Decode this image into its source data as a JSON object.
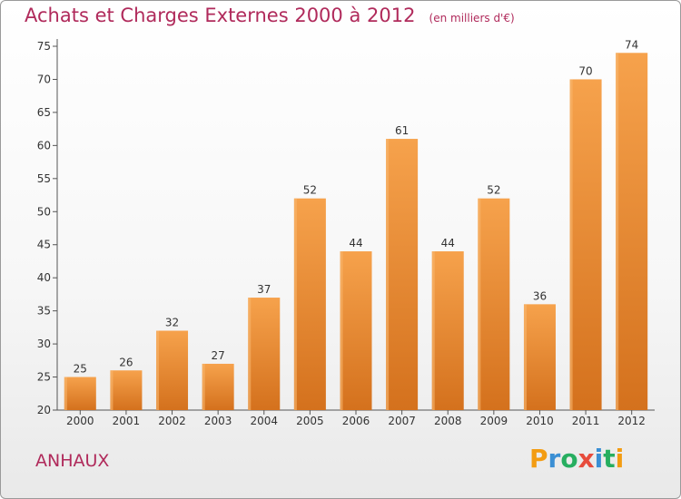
{
  "header": {
    "title": "Achats et Charges Externes 2000 à 2012",
    "unit": "(en milliers d'€)"
  },
  "commune": "ANHAUX",
  "logo": {
    "letters": [
      "P",
      "r",
      "o",
      "x",
      "i",
      "t",
      "i"
    ],
    "colors": [
      "#f39c12",
      "#3b8fd4",
      "#27ae60",
      "#e74c3c",
      "#3b8fd4",
      "#27ae60",
      "#f39c12"
    ]
  },
  "chart_data": {
    "type": "bar",
    "title": "Achats et Charges Externes 2000 à 2012",
    "categories": [
      "2000",
      "2001",
      "2002",
      "2003",
      "2004",
      "2005",
      "2006",
      "2007",
      "2008",
      "2009",
      "2010",
      "2011",
      "2012"
    ],
    "values": [
      25,
      26,
      32,
      27,
      37,
      52,
      44,
      61,
      44,
      52,
      36,
      70,
      74
    ],
    "yticks": [
      20,
      25,
      30,
      35,
      40,
      45,
      50,
      55,
      60,
      65,
      70,
      75
    ],
    "ylim": [
      20,
      75
    ],
    "grid": false,
    "bar_color": "#e8862a"
  }
}
